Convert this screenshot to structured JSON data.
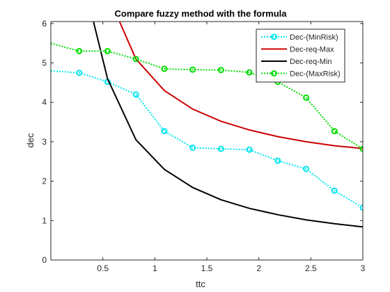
{
  "chart_data": {
    "type": "line",
    "title": "Compare fuzzy method with the formula",
    "xlabel": "ttc",
    "ylabel": "dec",
    "xlim": [
      0,
      3
    ],
    "ylim": [
      0,
      6.05
    ],
    "xticks": [
      0.5,
      1,
      1.5,
      2,
      2.5,
      3
    ],
    "xtick_labels": [
      "0.5",
      "1",
      "1.5",
      "2",
      "2.5",
      "3"
    ],
    "yticks": [
      0,
      1,
      2,
      3,
      4,
      5,
      6
    ],
    "ytick_labels": [
      "0",
      "1",
      "2",
      "3",
      "4",
      "5",
      "6"
    ],
    "grid": false,
    "legend_position": "top-right",
    "series": [
      {
        "name": "Dec-(MinRisk)",
        "color": "#00e5ee",
        "style": "dotted",
        "marker": "circle",
        "x": [
          0,
          0.273,
          0.545,
          0.818,
          1.091,
          1.364,
          1.636,
          1.909,
          2.182,
          2.455,
          2.727,
          3.0
        ],
        "y": [
          4.8,
          4.75,
          4.52,
          4.2,
          3.27,
          2.85,
          2.82,
          2.8,
          2.52,
          2.31,
          1.76,
          1.33
        ],
        "marker_indices": [
          1,
          2,
          3,
          4,
          5,
          6,
          7,
          8,
          9,
          10,
          11
        ]
      },
      {
        "name": "Dec-req-Max",
        "color": "#cc0000",
        "style": "solid",
        "marker": "none",
        "x": [
          0.66,
          0.818,
          1.091,
          1.364,
          1.636,
          1.909,
          2.182,
          2.455,
          2.727,
          3.0
        ],
        "y": [
          6.05,
          5.1,
          4.3,
          3.83,
          3.52,
          3.3,
          3.13,
          3.0,
          2.9,
          2.83
        ],
        "marker_indices": []
      },
      {
        "name": "Dec-req-Min",
        "color": "#000000",
        "style": "solid",
        "marker": "none",
        "x": [
          0.41,
          0.545,
          0.818,
          1.091,
          1.364,
          1.636,
          1.909,
          2.182,
          2.455,
          2.727,
          3.0
        ],
        "y": [
          6.05,
          4.6,
          3.05,
          2.3,
          1.84,
          1.53,
          1.31,
          1.15,
          1.02,
          0.92,
          0.84
        ],
        "marker_indices": []
      },
      {
        "name": "Dec-(MaxRisk)",
        "color": "#00dd00",
        "style": "dotted",
        "marker": "circle",
        "x": [
          0,
          0.273,
          0.545,
          0.818,
          1.091,
          1.364,
          1.636,
          1.909,
          2.182,
          2.455,
          2.727,
          3.0
        ],
        "y": [
          5.5,
          5.3,
          5.3,
          5.1,
          4.85,
          4.83,
          4.82,
          4.76,
          4.52,
          4.12,
          3.27,
          2.82
        ],
        "marker_indices": [
          1,
          2,
          3,
          4,
          5,
          6,
          7,
          8,
          9,
          10,
          11
        ]
      }
    ]
  }
}
